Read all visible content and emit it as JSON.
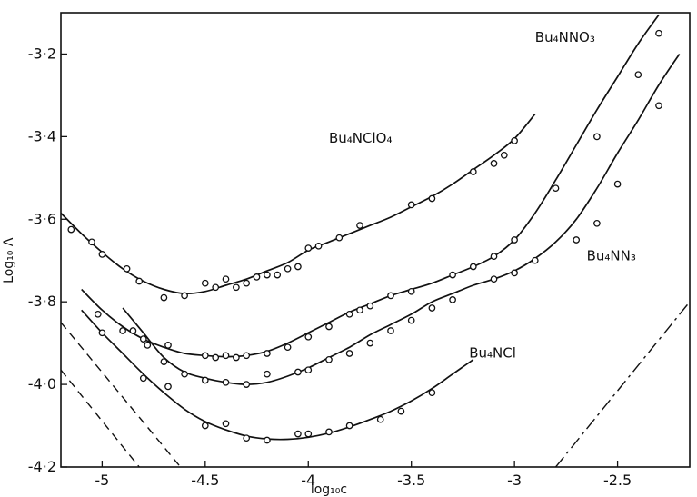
{
  "chart_data": {
    "type": "scatter",
    "xlabel": "log₁₀c",
    "ylabel": "Log₁₀ Λ",
    "xlim": [
      -5.2,
      -2.15
    ],
    "ylim": [
      -4.2,
      -3.1
    ],
    "x_ticks": [
      {
        "value": -5,
        "label": "-5"
      },
      {
        "value": -4.5,
        "label": "-4.5"
      },
      {
        "value": -4,
        "label": "-4"
      },
      {
        "value": -3.5,
        "label": "-3.5"
      },
      {
        "value": -3,
        "label": "-3"
      },
      {
        "value": -2.5,
        "label": "-2.5"
      }
    ],
    "y_ticks": [
      {
        "value": -3.2,
        "label": "-3·2"
      },
      {
        "value": -3.4,
        "label": "-3·4"
      },
      {
        "value": -3.6,
        "label": "-3·6"
      },
      {
        "value": -3.8,
        "label": "-3·8"
      },
      {
        "value": -4.0,
        "label": "-4·0"
      },
      {
        "value": -4.2,
        "label": "-4·2"
      }
    ],
    "series": [
      {
        "name": "Bu₄NClO₄",
        "label_at": [
          -3.9,
          -3.415
        ],
        "curve": [
          [
            -5.2,
            -3.585
          ],
          [
            -5.1,
            -3.635
          ],
          [
            -5.0,
            -3.68
          ],
          [
            -4.9,
            -3.72
          ],
          [
            -4.8,
            -3.75
          ],
          [
            -4.7,
            -3.77
          ],
          [
            -4.6,
            -3.78
          ],
          [
            -4.5,
            -3.775
          ],
          [
            -4.4,
            -3.76
          ],
          [
            -4.3,
            -3.745
          ],
          [
            -4.2,
            -3.725
          ],
          [
            -4.1,
            -3.705
          ],
          [
            -4.0,
            -3.675
          ],
          [
            -3.9,
            -3.655
          ],
          [
            -3.8,
            -3.635
          ],
          [
            -3.7,
            -3.615
          ],
          [
            -3.6,
            -3.595
          ],
          [
            -3.5,
            -3.57
          ],
          [
            -3.4,
            -3.545
          ],
          [
            -3.3,
            -3.515
          ],
          [
            -3.2,
            -3.48
          ],
          [
            -3.1,
            -3.445
          ],
          [
            -3.0,
            -3.405
          ],
          [
            -2.9,
            -3.345
          ]
        ],
        "points": [
          [
            -5.15,
            -3.625
          ],
          [
            -5.05,
            -3.655
          ],
          [
            -5.0,
            -3.685
          ],
          [
            -4.88,
            -3.72
          ],
          [
            -4.82,
            -3.75
          ],
          [
            -4.7,
            -3.79
          ],
          [
            -4.6,
            -3.785
          ],
          [
            -4.5,
            -3.755
          ],
          [
            -4.45,
            -3.765
          ],
          [
            -4.4,
            -3.745
          ],
          [
            -4.35,
            -3.765
          ],
          [
            -4.3,
            -3.755
          ],
          [
            -4.25,
            -3.74
          ],
          [
            -4.2,
            -3.735
          ],
          [
            -4.15,
            -3.735
          ],
          [
            -4.1,
            -3.72
          ],
          [
            -4.05,
            -3.715
          ],
          [
            -4.0,
            -3.67
          ],
          [
            -3.95,
            -3.665
          ],
          [
            -3.85,
            -3.645
          ],
          [
            -3.75,
            -3.615
          ],
          [
            -3.5,
            -3.565
          ],
          [
            -3.4,
            -3.55
          ],
          [
            -3.2,
            -3.485
          ],
          [
            -3.1,
            -3.465
          ],
          [
            -3.05,
            -3.445
          ],
          [
            -3.0,
            -3.41
          ]
        ]
      },
      {
        "name": "Bu₄NNO₃",
        "label_at": [
          -2.9,
          -3.17
        ],
        "curve": [
          [
            -5.1,
            -3.77
          ],
          [
            -5.0,
            -3.82
          ],
          [
            -4.9,
            -3.86
          ],
          [
            -4.8,
            -3.89
          ],
          [
            -4.7,
            -3.91
          ],
          [
            -4.6,
            -3.925
          ],
          [
            -4.5,
            -3.93
          ],
          [
            -4.4,
            -3.933
          ],
          [
            -4.3,
            -3.93
          ],
          [
            -4.2,
            -3.92
          ],
          [
            -4.1,
            -3.9
          ],
          [
            -4.0,
            -3.875
          ],
          [
            -3.9,
            -3.85
          ],
          [
            -3.8,
            -3.825
          ],
          [
            -3.7,
            -3.805
          ],
          [
            -3.6,
            -3.785
          ],
          [
            -3.5,
            -3.77
          ],
          [
            -3.4,
            -3.755
          ],
          [
            -3.3,
            -3.735
          ],
          [
            -3.2,
            -3.715
          ],
          [
            -3.1,
            -3.69
          ],
          [
            -3.0,
            -3.65
          ],
          [
            -2.9,
            -3.585
          ],
          [
            -2.8,
            -3.505
          ],
          [
            -2.7,
            -3.42
          ],
          [
            -2.6,
            -3.335
          ],
          [
            -2.5,
            -3.255
          ],
          [
            -2.4,
            -3.175
          ],
          [
            -2.3,
            -3.105
          ]
        ],
        "points": [
          [
            -5.02,
            -3.83
          ],
          [
            -4.9,
            -3.87
          ],
          [
            -4.8,
            -3.89
          ],
          [
            -4.68,
            -3.905
          ],
          [
            -4.5,
            -3.93
          ],
          [
            -4.45,
            -3.935
          ],
          [
            -4.4,
            -3.93
          ],
          [
            -4.35,
            -3.935
          ],
          [
            -4.3,
            -3.93
          ],
          [
            -4.2,
            -3.925
          ],
          [
            -4.1,
            -3.91
          ],
          [
            -4.0,
            -3.885
          ],
          [
            -3.9,
            -3.86
          ],
          [
            -3.8,
            -3.83
          ],
          [
            -3.75,
            -3.82
          ],
          [
            -3.7,
            -3.81
          ],
          [
            -3.6,
            -3.785
          ],
          [
            -3.5,
            -3.775
          ],
          [
            -3.3,
            -3.735
          ],
          [
            -3.2,
            -3.715
          ],
          [
            -3.1,
            -3.69
          ],
          [
            -3.0,
            -3.65
          ],
          [
            -2.8,
            -3.525
          ],
          [
            -2.6,
            -3.4
          ],
          [
            -2.4,
            -3.25
          ],
          [
            -2.3,
            -3.15
          ]
        ]
      },
      {
        "name": "Bu₄NN₃",
        "label_at": [
          -2.65,
          -3.7
        ],
        "curve": [
          [
            -4.9,
            -3.815
          ],
          [
            -4.8,
            -3.875
          ],
          [
            -4.7,
            -3.935
          ],
          [
            -4.6,
            -3.97
          ],
          [
            -4.5,
            -3.985
          ],
          [
            -4.4,
            -3.995
          ],
          [
            -4.3,
            -4.0
          ],
          [
            -4.2,
            -3.995
          ],
          [
            -4.1,
            -3.98
          ],
          [
            -4.0,
            -3.96
          ],
          [
            -3.9,
            -3.935
          ],
          [
            -3.8,
            -3.91
          ],
          [
            -3.7,
            -3.88
          ],
          [
            -3.6,
            -3.855
          ],
          [
            -3.5,
            -3.83
          ],
          [
            -3.4,
            -3.8
          ],
          [
            -3.3,
            -3.78
          ],
          [
            -3.2,
            -3.76
          ],
          [
            -3.1,
            -3.745
          ],
          [
            -3.0,
            -3.725
          ],
          [
            -2.9,
            -3.695
          ],
          [
            -2.8,
            -3.655
          ],
          [
            -2.7,
            -3.6
          ],
          [
            -2.6,
            -3.525
          ],
          [
            -2.5,
            -3.44
          ],
          [
            -2.4,
            -3.36
          ],
          [
            -2.3,
            -3.275
          ],
          [
            -2.2,
            -3.2
          ]
        ],
        "points": [
          [
            -4.85,
            -3.87
          ],
          [
            -4.78,
            -3.905
          ],
          [
            -4.7,
            -3.945
          ],
          [
            -4.6,
            -3.975
          ],
          [
            -4.5,
            -3.99
          ],
          [
            -4.4,
            -3.995
          ],
          [
            -4.3,
            -4.0
          ],
          [
            -4.2,
            -3.975
          ],
          [
            -4.05,
            -3.97
          ],
          [
            -4.0,
            -3.965
          ],
          [
            -3.9,
            -3.94
          ],
          [
            -3.8,
            -3.925
          ],
          [
            -3.7,
            -3.9
          ],
          [
            -3.6,
            -3.87
          ],
          [
            -3.5,
            -3.845
          ],
          [
            -3.4,
            -3.815
          ],
          [
            -3.3,
            -3.795
          ],
          [
            -3.1,
            -3.745
          ],
          [
            -3.0,
            -3.73
          ],
          [
            -2.9,
            -3.7
          ],
          [
            -2.7,
            -3.65
          ],
          [
            -2.6,
            -3.61
          ],
          [
            -2.5,
            -3.515
          ],
          [
            -2.3,
            -3.325
          ]
        ]
      },
      {
        "name": "Bu₄NCl",
        "label_at": [
          -3.22,
          -3.935
        ],
        "curve": [
          [
            -5.1,
            -3.82
          ],
          [
            -5.0,
            -3.875
          ],
          [
            -4.9,
            -3.925
          ],
          [
            -4.8,
            -3.975
          ],
          [
            -4.7,
            -4.02
          ],
          [
            -4.6,
            -4.06
          ],
          [
            -4.5,
            -4.09
          ],
          [
            -4.4,
            -4.11
          ],
          [
            -4.3,
            -4.125
          ],
          [
            -4.2,
            -4.132
          ],
          [
            -4.1,
            -4.133
          ],
          [
            -4.0,
            -4.128
          ],
          [
            -3.9,
            -4.118
          ],
          [
            -3.8,
            -4.103
          ],
          [
            -3.7,
            -4.085
          ],
          [
            -3.6,
            -4.065
          ],
          [
            -3.5,
            -4.04
          ],
          [
            -3.4,
            -4.01
          ],
          [
            -3.3,
            -3.975
          ],
          [
            -3.2,
            -3.94
          ]
        ],
        "points": [
          [
            -5.0,
            -3.875
          ],
          [
            -4.8,
            -3.985
          ],
          [
            -4.68,
            -4.005
          ],
          [
            -4.5,
            -4.1
          ],
          [
            -4.4,
            -4.095
          ],
          [
            -4.3,
            -4.13
          ],
          [
            -4.2,
            -4.135
          ],
          [
            -4.05,
            -4.12
          ],
          [
            -4.0,
            -4.12
          ],
          [
            -3.9,
            -4.115
          ],
          [
            -3.8,
            -4.1
          ],
          [
            -3.65,
            -4.085
          ],
          [
            -3.55,
            -4.065
          ],
          [
            -3.4,
            -4.02
          ]
        ]
      }
    ],
    "reference_lines": [
      {
        "style": "dashed",
        "points": [
          [
            -5.2,
            -3.85
          ],
          [
            -4.62,
            -4.2
          ]
        ]
      },
      {
        "style": "dashed",
        "points": [
          [
            -5.2,
            -3.965
          ],
          [
            -4.82,
            -4.2
          ]
        ]
      },
      {
        "style": "dash-dot",
        "points": [
          [
            -2.8,
            -4.2
          ],
          [
            -2.15,
            -3.8
          ]
        ]
      }
    ]
  }
}
